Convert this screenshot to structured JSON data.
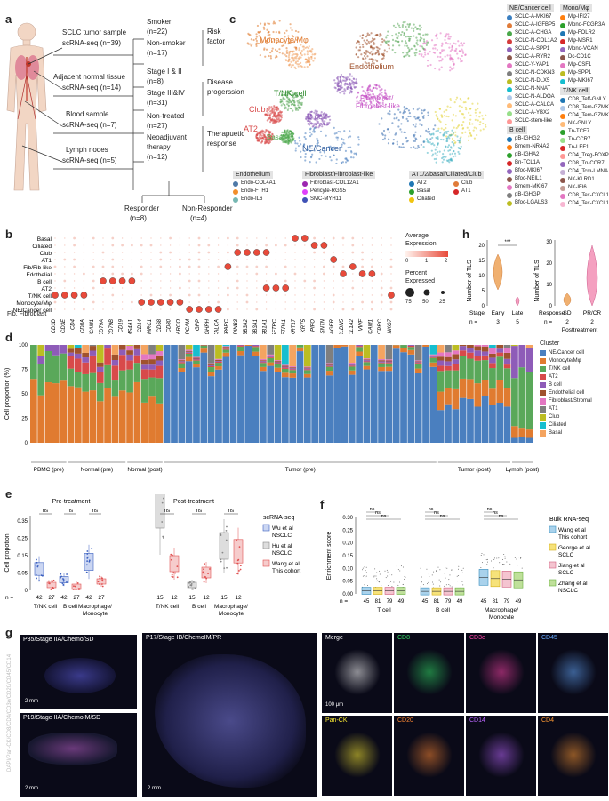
{
  "panels": {
    "a": "a",
    "b": "b",
    "c": "c",
    "d": "d",
    "e": "e",
    "f": "f",
    "g": "g",
    "h": "h"
  },
  "panel_a": {
    "tumor": "SCLC tumor sample",
    "tumor_n": "scRNA-seq (n=39)",
    "adjacent": "Adjacent normal tissue",
    "adjacent_n": "scRNA-seq (n=14)",
    "blood": "Blood sample",
    "blood_n": "scRNA-seq (n=7)",
    "lymph": "Lymph nodes",
    "lymph_n": "scRNA-seq (n=5)",
    "smoker": "Smoker",
    "smoker_n": "(n=22)",
    "nonsmoker": "Non-smoker",
    "nonsmoker_n": "(n=17)",
    "risk": "Risk",
    "risk2": "factor",
    "stage12": "Stage I & II",
    "stage12_n": "(n=8)",
    "stage34": "Stage III&IV",
    "stage34_n": "(n=31)",
    "disease": "Disease",
    "disease2": "progerssion",
    "nontreated": "Non-treated",
    "nontreated_n": "(n=27)",
    "neo": "Neoadjuvant",
    "neo2": "therapy",
    "neo_n": "(n=12)",
    "therapeutic": "Therapuetic",
    "therapeutic2": "response",
    "responder": "Responder",
    "responder_n": "(n=8)",
    "nonresponder": "Non-Responder",
    "nonresponder_n": "(n=4)"
  },
  "panel_c": {
    "umap_labels": [
      "Monocyte/Mφ",
      "Endothelium",
      "T/NK cell",
      "Fibroblast/",
      "Fibroblast-like",
      "Club",
      "B cell",
      "AT2",
      "Basal",
      "NE/Cancer"
    ],
    "groups": [
      {
        "title": "NE/Cancer cell",
        "items": [
          "SCLC-A-MKI67",
          "SCLC-A-IGFBP5",
          "SCLC-A-CHGA",
          "SCLC-N-COL1A2",
          "SCLC-A-SPP1",
          "SCLC-A-RYR2",
          "SCLC-Y-YAP1",
          "SCLC-N-CDKN3",
          "SCLC-N-DLX5",
          "SCLC-N-NNAT",
          "SCLC-N-ALDOA",
          "SCLC-A-CALCA",
          "SCLC-A-YBX2",
          "SCLC-stem-like"
        ],
        "colors": [
          "#3a7fc1",
          "#e07b39",
          "#4aa84a",
          "#d43c3c",
          "#8e63b8",
          "#8c564b",
          "#e377c2",
          "#7f7f7f",
          "#bcbd22",
          "#17becf",
          "#aec7e8",
          "#ffbb78",
          "#98df8a",
          "#ff9896"
        ]
      },
      {
        "title": "Mono/Mφ",
        "items": [
          "Mφ-IFI27",
          "Mono-FCGR3A",
          "Mφ-FOLR2",
          "Mφ-MSR1",
          "Mono-VCAN",
          "Dc-CD1C",
          "Mφ-CSF1",
          "Mφ-SPP1",
          "Mφ-MKI67"
        ],
        "colors": [
          "#ff7f0e",
          "#2ca02c",
          "#1f77b4",
          "#d62728",
          "#9467bd",
          "#8c564b",
          "#e377c2",
          "#bcbd22",
          "#17becf"
        ]
      },
      {
        "title": "B cell",
        "items": [
          "pB-IGHG2",
          "Bmem-NR4A2",
          "pB-IGHA2",
          "Bn-TCL1A",
          "Bfoc-MKI67",
          "Bfoc-NEIL1",
          "Bmem-MKI67",
          "pB-IGHGP",
          "Bfoc-LGALS3"
        ],
        "colors": [
          "#1f77b4",
          "#ff7f0e",
          "#2ca02c",
          "#d62728",
          "#9467bd",
          "#8c564b",
          "#e377c2",
          "#7f7f7f",
          "#bcbd22"
        ]
      },
      {
        "title": "T/NK cell",
        "items": [
          "CD8_Teff-GNLY",
          "CD8_Tem-GZMK",
          "CD4_Tem-GZMK",
          "NK-GNLY",
          "Tn-TCF7",
          "Tn-CCR7",
          "Tn-LEF1",
          "CD4_Treg-FOXP3",
          "CD8_Tn-CCR7",
          "CD4_Tcm-LMNA",
          "NK-KLRD1",
          "NK-IFI6",
          "CD8_Tex-CXCL13",
          "CD4_Tex-CXCL13"
        ],
        "colors": [
          "#1f77b4",
          "#aec7e8",
          "#ff7f0e",
          "#ffbb78",
          "#2ca02c",
          "#98df8a",
          "#d62728",
          "#ff9896",
          "#9467bd",
          "#c5b0d5",
          "#8c564b",
          "#c49c94",
          "#e377c2",
          "#f7b6d2"
        ]
      },
      {
        "title": "Endothelium",
        "items": [
          "Endo-COL4A1",
          "Endo-FTH1",
          "Endo-IL6"
        ],
        "colors": [
          "#4e79a7",
          "#f28e2b",
          "#76b7b2"
        ]
      },
      {
        "title": "Fibroblast/Fibroblast-like",
        "items": [
          "Fibroblast-COL12A1",
          "Pericyte-RGS5",
          "SMC-MYH11"
        ],
        "colors": [
          "#9c27b0",
          "#e040fb",
          "#3f51b5"
        ]
      },
      {
        "title": "AT1/2/basal/Ciliated/Club",
        "items": [
          "AT2",
          "Club",
          "Basal",
          "AT1",
          "Ciliated"
        ],
        "colors": [
          "#1f77b4",
          "#e07b39",
          "#2ca02c",
          "#d62728",
          "#f1c40f"
        ]
      }
    ]
  },
  "panel_b": {
    "rows": [
      "Basal",
      "Ciliated",
      "Club",
      "AT1",
      "Fib/Fib-like",
      "Edothelial",
      "B cell",
      "AT2",
      "T/NK cell",
      "Monocyte/Mφ",
      "NE/Cancer cell"
    ],
    "cols": [
      "CD3D",
      "CD3E",
      "CD4",
      "CD8A",
      "NCAM1",
      "CD79A",
      "CD79B",
      "CD19",
      "MS4A1",
      "CD14",
      "MRC1",
      "CD68",
      "CD80",
      "MARCO",
      "EPCAM",
      "GRP",
      "GHRH",
      "CALCA",
      "SPARC",
      "SERPINB3",
      "SCGB3A2",
      "SCGB3A1",
      "SCGB1A1",
      "SFTPC",
      "SFTPA1",
      "KRT17",
      "KRT5",
      "PIFO",
      "SNTN",
      "AGER",
      "CLDN5",
      "COL1A2",
      "VWF",
      "PECAM1",
      "PTPRC",
      "NKG7"
    ],
    "footnote": "Fib, Fibroblast",
    "legend_expr": "Average",
    "legend_expr2": "Expression",
    "expr_ticks": [
      "0",
      "1",
      "2"
    ],
    "legend_pct": "Percent",
    "legend_pct2": "Expressed",
    "pct_ticks": [
      "75",
      "50",
      "25"
    ]
  },
  "panel_h": {
    "ylabel": "Number of TLS",
    "stage_label": "Stage",
    "n_label": "n =",
    "left_cats": [
      "Early",
      "Late"
    ],
    "left_n": [
      "3",
      "5"
    ],
    "left_ticks": [
      "0",
      "5",
      "10",
      "15",
      "20"
    ],
    "sig": "***",
    "right_cats": [
      "SD",
      "PR/CR"
    ],
    "right_n": [
      "2",
      "2"
    ],
    "right_prefix": "Response",
    "right_sub": "Posttreatment",
    "right_ticks": [
      "0",
      "10",
      "20",
      "30"
    ]
  },
  "panel_d": {
    "ylabel": "Cell proportion (%)",
    "yticks": [
      "0",
      "25",
      "50",
      "75",
      "100"
    ],
    "legend_title": "Cluster",
    "clusters": [
      "NE/Cancer cell",
      "Monocyte/Mφ",
      "T/NK cell",
      "AT2",
      "B cell",
      "Endothelial cell",
      "Fibroblast/Stromal",
      "AT1",
      "Club",
      "Ciliated",
      "Basal"
    ],
    "cluster_colors": [
      "#4a7fbf",
      "#e07b30",
      "#5aa85a",
      "#d84a4a",
      "#8e5cb8",
      "#a0522d",
      "#e377c2",
      "#7f7f7f",
      "#bcbd22",
      "#17becf",
      "#f4a460"
    ],
    "groups": [
      "PBMC (pre)",
      "Normal (pre)",
      "Normal (post)",
      "Tumor (pre)",
      "Tumor (post)",
      "Lymph (post)"
    ]
  },
  "panel_e": {
    "ylabel": "Cell propotion",
    "pre_title": "Pre-treatment",
    "post_title": "Post-treatment",
    "yticks": [
      "0",
      "0.05",
      "0.15",
      "0.25",
      "0.35"
    ],
    "cats": [
      "T/NK cell",
      "B cell",
      "Macrophage/",
      "Monocyte"
    ],
    "pre_n": [
      "42",
      "27",
      "42",
      "27",
      "42",
      "27"
    ],
    "post_n": [
      "15",
      "12",
      "15",
      "12",
      "15",
      "12"
    ],
    "n_label": "n =",
    "ns": "ns",
    "legend_title": "scRNA-seq",
    "legend": [
      "Wu et al",
      "NSCLC",
      "Hu et al",
      "NSCLC",
      "Wang et al",
      "This cohort"
    ]
  },
  "panel_f": {
    "ylabel": "Enrichment score",
    "yticks": [
      "0.00",
      "0.05",
      "0.10",
      "0.15",
      "0.20",
      "0.25",
      "0.30"
    ],
    "cats": [
      "T cell",
      "B cell",
      "Macrophage/",
      "Monocyte"
    ],
    "n": [
      "45",
      "81",
      "79",
      "49",
      "45",
      "81",
      "79",
      "49",
      "45",
      "81",
      "79",
      "49"
    ],
    "n_label": "n =",
    "ns": "ns",
    "legend_title": "Bulk RNA-seq",
    "legend": [
      "Wang et al",
      "This cohort",
      "George et al",
      "SCLC",
      "Jiang et al",
      "SCLC",
      "Zhang et al",
      "NSCLC"
    ]
  },
  "panel_g": {
    "tile1": "P35/Stage IIA/Chemo/SD",
    "tile2": "P19/Stage IIA/ChemoIM/SD",
    "tile3": "P17/Stage IB/ChemoIM/PR",
    "scale_2mm": "2 mm",
    "scale_100": "100 μm",
    "vertical": "DAPI/Pan-CK/CD8/CD4/CD3e/CD20/CD45/CD14",
    "zooms": [
      "Merge",
      "CD8",
      "CD3e",
      "CD45",
      "Pan-CK",
      "CD20",
      "CD14",
      "CD4"
    ],
    "zoom_colors": [
      "#ffffff",
      "#33dd66",
      "#ff44aa",
      "#66aaff",
      "#ffee33",
      "#ff8833",
      "#bb66ff",
      "#ff9933"
    ]
  }
}
